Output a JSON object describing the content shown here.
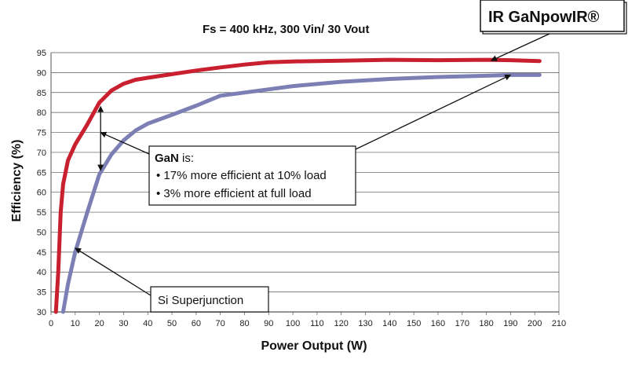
{
  "chart_data": {
    "type": "line",
    "title": "Fs = 400 kHz, 300 Vin/ 30 Vout",
    "xlabel": "Power Output (W)",
    "ylabel": "Efficiency (%)",
    "xlim": [
      0,
      210
    ],
    "ylim": [
      30,
      95
    ],
    "xticks": [
      0,
      10,
      20,
      30,
      40,
      50,
      60,
      70,
      80,
      90,
      100,
      110,
      120,
      130,
      140,
      150,
      160,
      170,
      180,
      190,
      200,
      210
    ],
    "yticks": [
      30,
      35,
      40,
      45,
      50,
      55,
      60,
      65,
      70,
      75,
      80,
      85,
      90,
      95
    ],
    "grid": "horizontal",
    "series": [
      {
        "name": "IR GaNpowIR®",
        "color": "#c8202f",
        "x": [
          2,
          3,
          4,
          5,
          7,
          10,
          15,
          20,
          25,
          30,
          35,
          40,
          50,
          60,
          70,
          80,
          90,
          100,
          120,
          140,
          160,
          180,
          190,
          202
        ],
        "y": [
          30,
          40,
          55,
          62,
          68,
          72,
          77,
          82.5,
          85.5,
          87.2,
          88.2,
          88.7,
          89.6,
          90.5,
          91.3,
          92,
          92.6,
          92.8,
          93,
          93.2,
          93.1,
          93.2,
          93.1,
          92.9
        ]
      },
      {
        "name": "Si Superjunction",
        "color": "#7b7fb4",
        "x": [
          5,
          7,
          10,
          15,
          20,
          25,
          30,
          35,
          40,
          50,
          60,
          70,
          80,
          90,
          100,
          120,
          140,
          160,
          180,
          190,
          202
        ],
        "y": [
          30,
          37,
          45,
          55,
          64.5,
          69.5,
          73,
          75.5,
          77.2,
          79.4,
          81.7,
          84.2,
          85,
          85.8,
          86.6,
          87.7,
          88.4,
          88.9,
          89.2,
          89.4,
          89.4
        ]
      }
    ],
    "annotations": {
      "gan_label": "IR GaNpowIR®",
      "si_label": "Si Superjunction",
      "gan_box": {
        "title": "GaN",
        "title_suffix": " is:",
        "bullets": [
          "17% more efficient at 10% load",
          "3% more efficient at full load"
        ]
      }
    }
  }
}
